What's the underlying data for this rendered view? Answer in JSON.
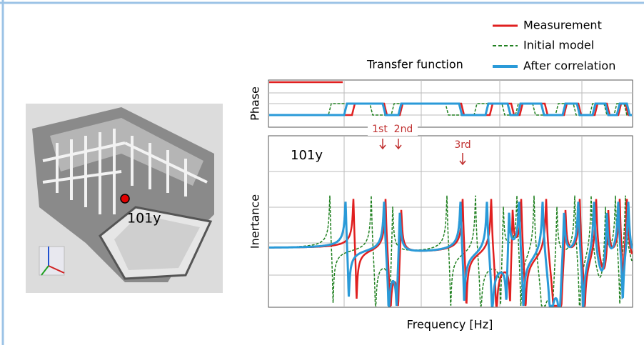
{
  "figure": {
    "title": "Transfer function",
    "legend": [
      "Measurement",
      "Initial model",
      "After correlation"
    ],
    "phase_label": "Phase",
    "inertance_label": "Inertance",
    "x_label": "Frequency [Hz]",
    "point_label": "101y",
    "plot_point_label": "101y",
    "modes": [
      "1st",
      "2nd",
      "3rd"
    ]
  }
}
